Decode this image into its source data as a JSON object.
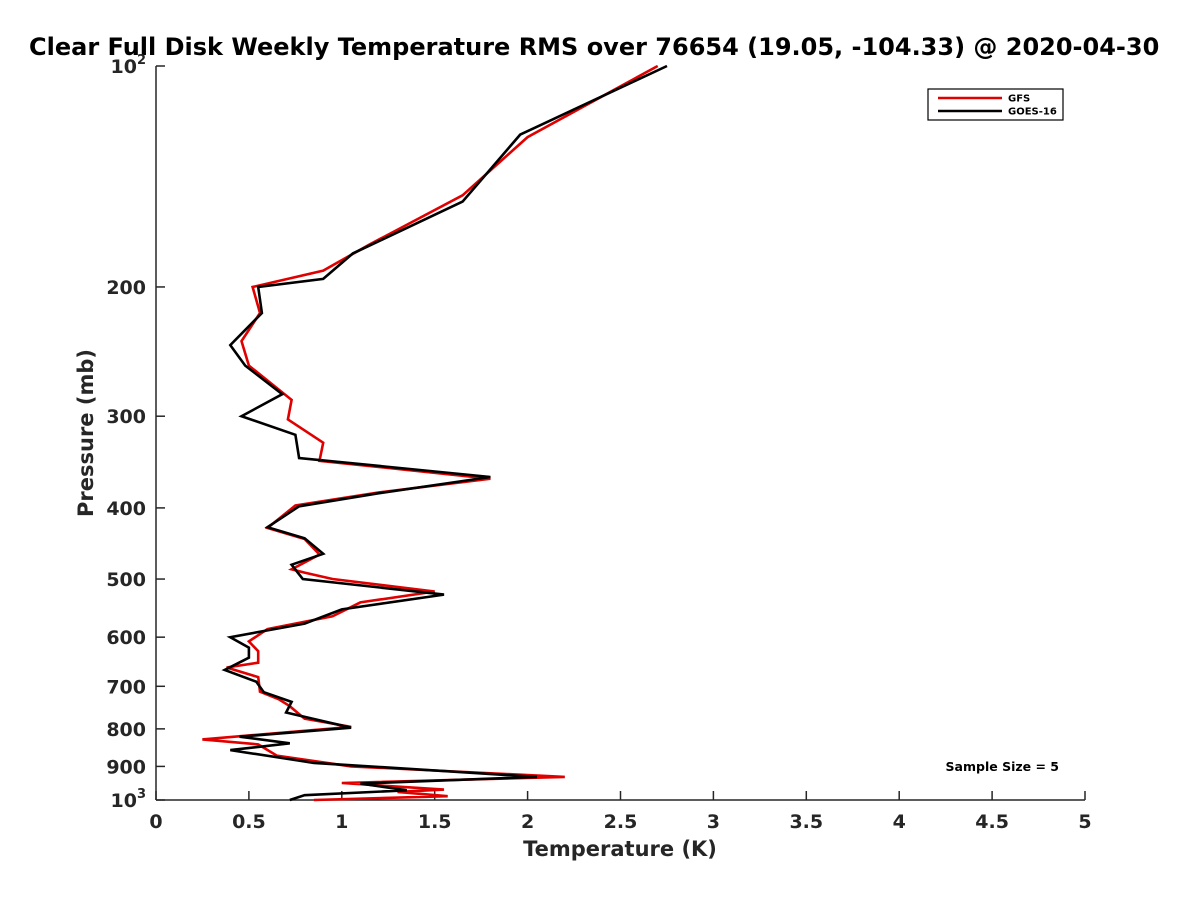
{
  "chart_data": {
    "type": "line",
    "title": "Clear Full Disk Weekly Temperature RMS over 76654 (19.05, -104.33) @ 2020-04-30",
    "xlabel": "Temperature (K)",
    "ylabel": "Pressure (mb)",
    "xlim": [
      0,
      5
    ],
    "ylim": [
      100,
      1000
    ],
    "yscale": "log",
    "y_reversed": true,
    "grid": false,
    "legend_position": "top-right",
    "x_ticks": [
      "0",
      "0.5",
      "1",
      "1.5",
      "2",
      "2.5",
      "3",
      "3.5",
      "4",
      "4.5",
      "5"
    ],
    "x_tick_values": [
      0,
      0.5,
      1,
      1.5,
      2,
      2.5,
      3,
      3.5,
      4,
      4.5,
      5
    ],
    "y_ticks": [
      {
        "value": 100,
        "base": "10",
        "exp": "2"
      },
      {
        "value": 200,
        "label": "200"
      },
      {
        "value": 300,
        "label": "300"
      },
      {
        "value": 400,
        "label": "400"
      },
      {
        "value": 500,
        "label": "500"
      },
      {
        "value": 600,
        "label": "600"
      },
      {
        "value": 700,
        "label": "700"
      },
      {
        "value": 800,
        "label": "800"
      },
      {
        "value": 900,
        "label": "900"
      },
      {
        "value": 1000,
        "base": "10",
        "exp": "3"
      }
    ],
    "annotation": "Sample Size = 5",
    "series": [
      {
        "name": "GFS",
        "color": "#e00000",
        "points": [
          [
            2.7,
            100
          ],
          [
            2.0,
            125
          ],
          [
            1.65,
            150
          ],
          [
            1.15,
            175
          ],
          [
            0.9,
            190
          ],
          [
            0.52,
            200
          ],
          [
            0.56,
            217
          ],
          [
            0.46,
            237
          ],
          [
            0.5,
            256
          ],
          [
            0.73,
            285
          ],
          [
            0.71,
            303
          ],
          [
            0.9,
            326
          ],
          [
            0.88,
            345
          ],
          [
            1.8,
            365
          ],
          [
            1.2,
            381
          ],
          [
            0.75,
            397
          ],
          [
            0.6,
            426
          ],
          [
            0.8,
            441
          ],
          [
            0.88,
            463
          ],
          [
            0.73,
            485
          ],
          [
            0.8,
            490
          ],
          [
            0.95,
            500
          ],
          [
            1.5,
            520
          ],
          [
            1.1,
            538
          ],
          [
            0.95,
            562
          ],
          [
            0.6,
            585
          ],
          [
            0.5,
            608
          ],
          [
            0.55,
            627
          ],
          [
            0.55,
            650
          ],
          [
            0.38,
            660
          ],
          [
            0.55,
            680
          ],
          [
            0.56,
            712
          ],
          [
            0.66,
            729
          ],
          [
            0.72,
            745
          ],
          [
            0.8,
            775
          ],
          [
            1.05,
            795
          ],
          [
            0.25,
            827
          ],
          [
            0.55,
            840
          ],
          [
            0.65,
            870
          ],
          [
            1.05,
            900
          ],
          [
            2.2,
            930
          ],
          [
            1.0,
            948
          ],
          [
            1.55,
            968
          ],
          [
            1.3,
            975
          ],
          [
            1.57,
            988
          ],
          [
            0.85,
            1000
          ]
        ]
      },
      {
        "name": "GOES-16",
        "color": "#000000",
        "points": [
          [
            2.75,
            100
          ],
          [
            1.96,
            124
          ],
          [
            1.65,
            153
          ],
          [
            1.06,
            180
          ],
          [
            0.9,
            195
          ],
          [
            0.55,
            200
          ],
          [
            0.57,
            217
          ],
          [
            0.4,
            240
          ],
          [
            0.48,
            256
          ],
          [
            0.68,
            280
          ],
          [
            0.46,
            300
          ],
          [
            0.75,
            318
          ],
          [
            0.77,
            342
          ],
          [
            1.8,
            363
          ],
          [
            1.2,
            382
          ],
          [
            0.77,
            398
          ],
          [
            0.6,
            425
          ],
          [
            0.8,
            440
          ],
          [
            0.9,
            462
          ],
          [
            0.73,
            478
          ],
          [
            0.79,
            500
          ],
          [
            1.55,
            525
          ],
          [
            1.0,
            550
          ],
          [
            0.8,
            575
          ],
          [
            0.4,
            600
          ],
          [
            0.5,
            620
          ],
          [
            0.5,
            640
          ],
          [
            0.37,
            665
          ],
          [
            0.54,
            690
          ],
          [
            0.58,
            713
          ],
          [
            0.73,
            735
          ],
          [
            0.7,
            760
          ],
          [
            1.05,
            797
          ],
          [
            0.45,
            820
          ],
          [
            0.72,
            837
          ],
          [
            0.4,
            855
          ],
          [
            0.85,
            890
          ],
          [
            2.05,
            930
          ],
          [
            1.1,
            950
          ],
          [
            1.35,
            970
          ],
          [
            0.8,
            985
          ],
          [
            0.72,
            1000
          ]
        ]
      }
    ]
  }
}
